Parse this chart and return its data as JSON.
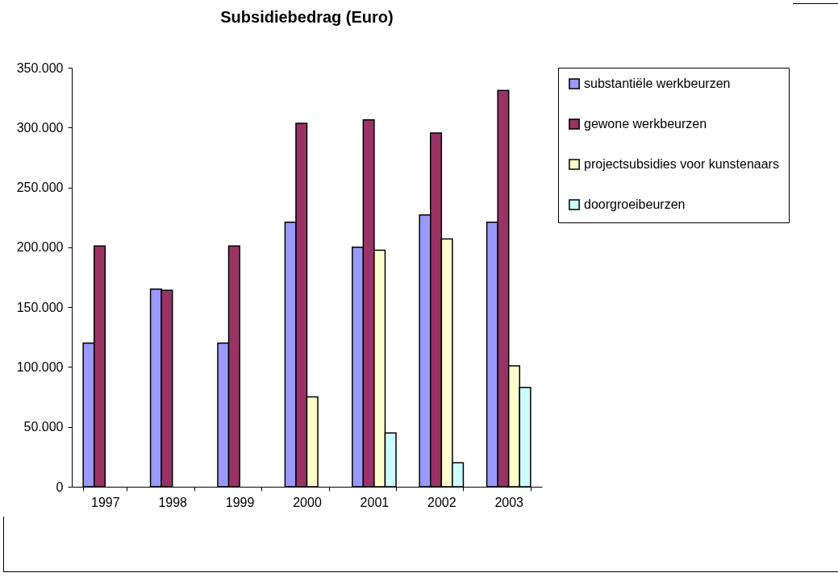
{
  "chart_data": {
    "type": "bar",
    "title": "Subsidiebedrag (Euro)",
    "categories": [
      "1997",
      "1998",
      "1999",
      "2000",
      "2001",
      "2002",
      "2003"
    ],
    "series": [
      {
        "name": "substantiële werkbeurzen",
        "color": "#9999ff",
        "values": [
          120000,
          165000,
          120000,
          221000,
          200000,
          227000,
          221000
        ]
      },
      {
        "name": "gewone werkbeurzen",
        "color": "#993366",
        "values": [
          201000,
          164000,
          201000,
          303500,
          306500,
          295500,
          331000
        ]
      },
      {
        "name": "projectsubsidies voor kunstenaars",
        "color": "#ffffcc",
        "values": [
          null,
          null,
          null,
          75000,
          197500,
          207000,
          101000
        ]
      },
      {
        "name": "doorgroeibeurzen",
        "color": "#ccffff",
        "values": [
          null,
          null,
          null,
          null,
          45000,
          20000,
          83000
        ]
      }
    ],
    "ylim": [
      0,
      350000
    ],
    "yticks": [
      0,
      {
        "value": 50000,
        "label": "50.000"
      },
      {
        "value": 100000,
        "label": "100.000"
      },
      {
        "value": 150000,
        "label": "150.000"
      },
      {
        "value": 200000,
        "label": "200.000"
      },
      {
        "value": 250000,
        "label": "250.000"
      },
      {
        "value": 300000,
        "label": "300.000"
      },
      {
        "value": 350000,
        "label": "350.000"
      }
    ],
    "grid": false,
    "legend": "right"
  }
}
